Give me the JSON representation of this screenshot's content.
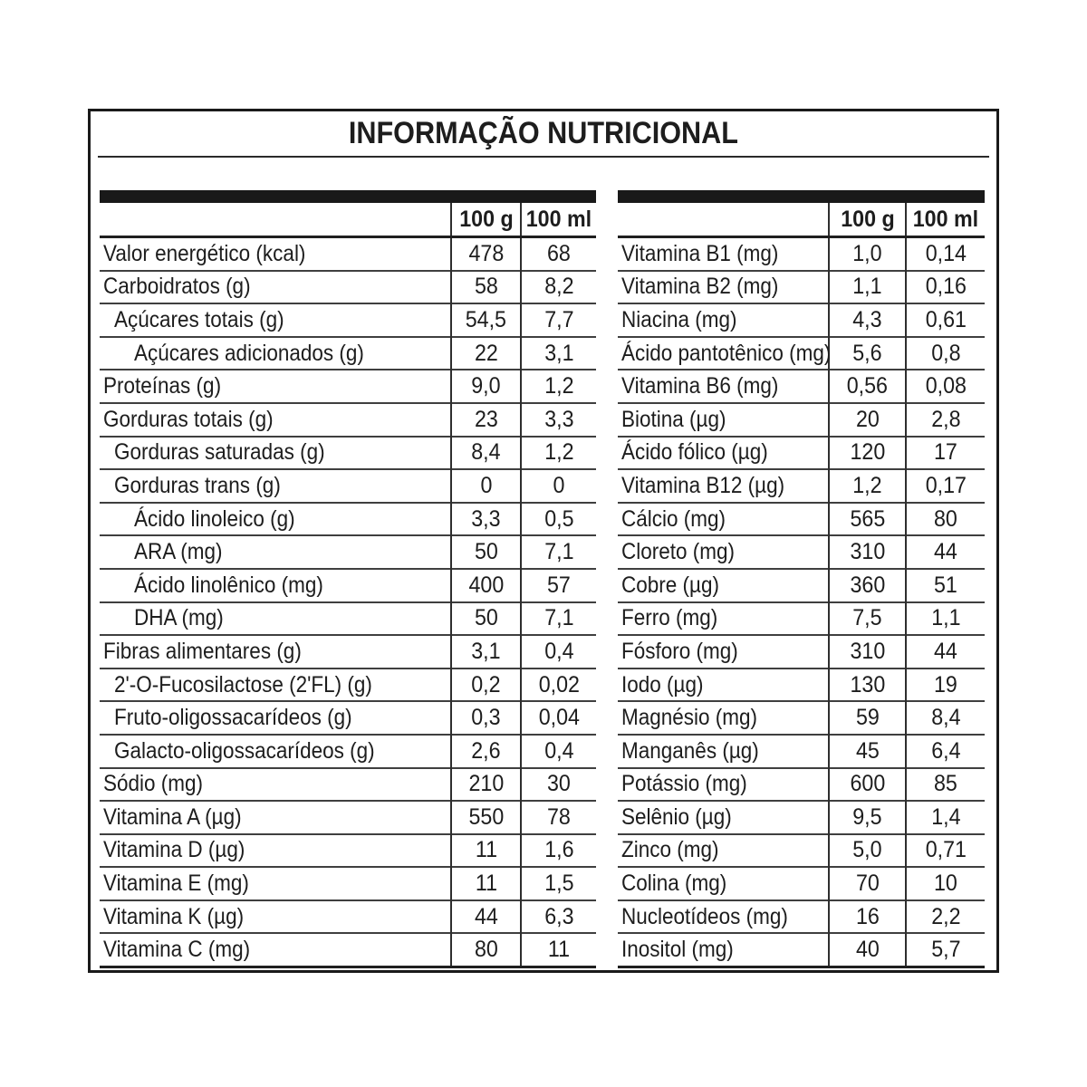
{
  "title": "INFORMAÇÃO NUTRICIONAL",
  "columns": {
    "per_100g": "100 g",
    "per_100ml": "100 ml"
  },
  "colors": {
    "background": "#ffffff",
    "text": "#1d1d1d",
    "border": "#1a1a1a",
    "header_bar": "#191919",
    "grid_line": "#3f3f3f"
  },
  "tables": {
    "left": {
      "rows": [
        {
          "label": "Valor energético (kcal)",
          "indent": 0,
          "per_100g": "478",
          "per_100ml": "68"
        },
        {
          "label": "Carboidratos (g)",
          "indent": 0,
          "per_100g": "58",
          "per_100ml": "8,2"
        },
        {
          "label": "Açúcares totais (g)",
          "indent": 1,
          "per_100g": "54,5",
          "per_100ml": "7,7"
        },
        {
          "label": "Açúcares adicionados (g)",
          "indent": 2,
          "per_100g": "22",
          "per_100ml": "3,1"
        },
        {
          "label": "Proteínas (g)",
          "indent": 0,
          "per_100g": "9,0",
          "per_100ml": "1,2"
        },
        {
          "label": "Gorduras totais (g)",
          "indent": 0,
          "per_100g": "23",
          "per_100ml": "3,3"
        },
        {
          "label": "Gorduras saturadas (g)",
          "indent": 1,
          "per_100g": "8,4",
          "per_100ml": "1,2"
        },
        {
          "label": "Gorduras trans (g)",
          "indent": 1,
          "per_100g": "0",
          "per_100ml": "0"
        },
        {
          "label": "Ácido linoleico (g)",
          "indent": 2,
          "per_100g": "3,3",
          "per_100ml": "0,5"
        },
        {
          "label": "ARA (mg)",
          "indent": 2,
          "per_100g": "50",
          "per_100ml": "7,1"
        },
        {
          "label": "Ácido linolênico (mg)",
          "indent": 2,
          "per_100g": "400",
          "per_100ml": "57"
        },
        {
          "label": "DHA (mg)",
          "indent": 2,
          "per_100g": "50",
          "per_100ml": "7,1"
        },
        {
          "label": "Fibras alimentares (g)",
          "indent": 0,
          "per_100g": "3,1",
          "per_100ml": "0,4"
        },
        {
          "label": "2'-O-Fucosilactose (2'FL) (g)",
          "indent": 1,
          "per_100g": "0,2",
          "per_100ml": "0,02"
        },
        {
          "label": "Fruto-oligossacarídeos (g)",
          "indent": 1,
          "per_100g": "0,3",
          "per_100ml": "0,04"
        },
        {
          "label": "Galacto-oligossacarídeos (g)",
          "indent": 1,
          "per_100g": "2,6",
          "per_100ml": "0,4"
        },
        {
          "label": "Sódio (mg)",
          "indent": 0,
          "per_100g": "210",
          "per_100ml": "30"
        },
        {
          "label": "Vitamina A (µg)",
          "indent": 0,
          "per_100g": "550",
          "per_100ml": "78"
        },
        {
          "label": "Vitamina D (µg)",
          "indent": 0,
          "per_100g": "11",
          "per_100ml": "1,6"
        },
        {
          "label": "Vitamina E (mg)",
          "indent": 0,
          "per_100g": "11",
          "per_100ml": "1,5"
        },
        {
          "label": "Vitamina K (µg)",
          "indent": 0,
          "per_100g": "44",
          "per_100ml": "6,3"
        },
        {
          "label": "Vitamina C (mg)",
          "indent": 0,
          "per_100g": "80",
          "per_100ml": "11"
        }
      ]
    },
    "right": {
      "rows": [
        {
          "label": "Vitamina B1 (mg)",
          "indent": 0,
          "per_100g": "1,0",
          "per_100ml": "0,14"
        },
        {
          "label": "Vitamina B2 (mg)",
          "indent": 0,
          "per_100g": "1,1",
          "per_100ml": "0,16"
        },
        {
          "label": "Niacina (mg)",
          "indent": 0,
          "per_100g": "4,3",
          "per_100ml": "0,61"
        },
        {
          "label": "Ácido pantotênico (mg)",
          "indent": 0,
          "per_100g": "5,6",
          "per_100ml": "0,8"
        },
        {
          "label": "Vitamina B6 (mg)",
          "indent": 0,
          "per_100g": "0,56",
          "per_100ml": "0,08"
        },
        {
          "label": "Biotina (µg)",
          "indent": 0,
          "per_100g": "20",
          "per_100ml": "2,8"
        },
        {
          "label": "Ácido fólico (µg)",
          "indent": 0,
          "per_100g": "120",
          "per_100ml": "17"
        },
        {
          "label": "Vitamina B12 (µg)",
          "indent": 0,
          "per_100g": "1,2",
          "per_100ml": "0,17"
        },
        {
          "label": "Cálcio (mg)",
          "indent": 0,
          "per_100g": "565",
          "per_100ml": "80"
        },
        {
          "label": "Cloreto (mg)",
          "indent": 0,
          "per_100g": "310",
          "per_100ml": "44"
        },
        {
          "label": "Cobre (µg)",
          "indent": 0,
          "per_100g": "360",
          "per_100ml": "51"
        },
        {
          "label": "Ferro (mg)",
          "indent": 0,
          "per_100g": "7,5",
          "per_100ml": "1,1"
        },
        {
          "label": "Fósforo (mg)",
          "indent": 0,
          "per_100g": "310",
          "per_100ml": "44"
        },
        {
          "label": "Iodo (µg)",
          "indent": 0,
          "per_100g": "130",
          "per_100ml": "19"
        },
        {
          "label": "Magnésio (mg)",
          "indent": 0,
          "per_100g": "59",
          "per_100ml": "8,4"
        },
        {
          "label": "Manganês (µg)",
          "indent": 0,
          "per_100g": "45",
          "per_100ml": "6,4"
        },
        {
          "label": "Potássio (mg)",
          "indent": 0,
          "per_100g": "600",
          "per_100ml": "85"
        },
        {
          "label": "Selênio (µg)",
          "indent": 0,
          "per_100g": "9,5",
          "per_100ml": "1,4"
        },
        {
          "label": "Zinco (mg)",
          "indent": 0,
          "per_100g": "5,0",
          "per_100ml": "0,71"
        },
        {
          "label": "Colina (mg)",
          "indent": 0,
          "per_100g": "70",
          "per_100ml": "10"
        },
        {
          "label": "Nucleotídeos (mg)",
          "indent": 0,
          "per_100g": "16",
          "per_100ml": "2,2"
        },
        {
          "label": "Inositol (mg)",
          "indent": 0,
          "per_100g": "40",
          "per_100ml": "5,7"
        }
      ]
    }
  }
}
